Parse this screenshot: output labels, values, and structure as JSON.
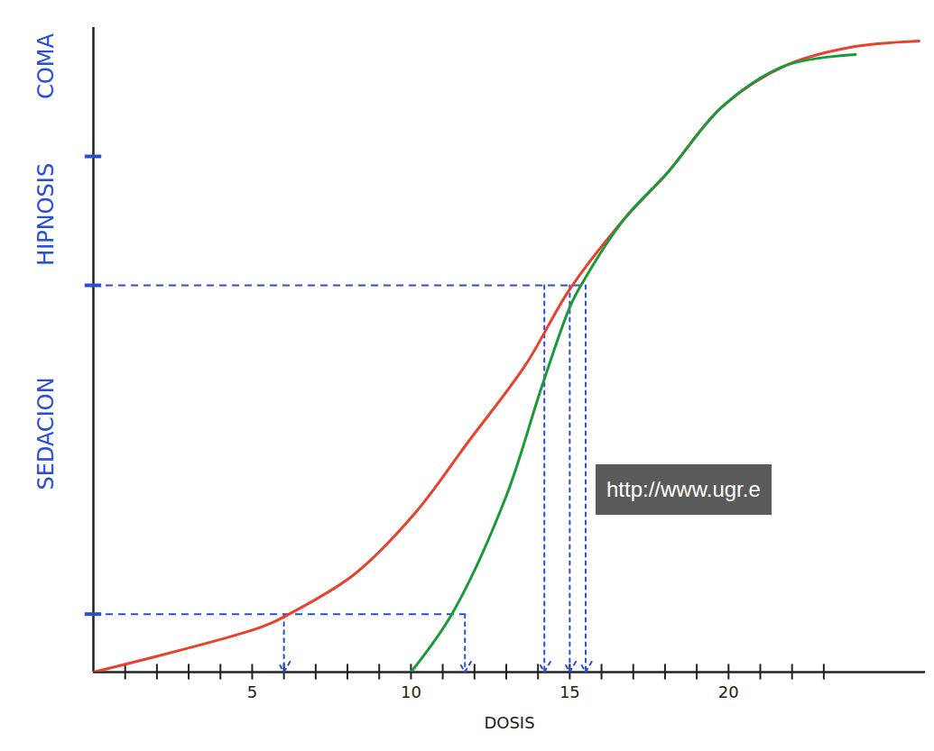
{
  "chart_data": {
    "type": "line",
    "x_label": "DOSIS",
    "xlim": [
      0,
      26.2
    ],
    "ylim": [
      0,
      100
    ],
    "xticks": [
      5,
      10,
      15,
      20
    ],
    "x_minor_ticks": [
      1,
      2,
      3,
      4,
      5,
      6,
      7,
      8,
      9,
      10,
      11,
      12,
      13,
      14,
      15,
      16,
      17,
      18,
      19,
      20,
      21,
      22,
      23
    ],
    "yticks": [
      9,
      60,
      80
    ],
    "tick_labels": "x",
    "grid": false,
    "y_regions": [
      {
        "label": "SEDACION",
        "y": 37
      },
      {
        "label": "HIPNOSIS",
        "y": 71
      },
      {
        "label": "COMA",
        "y": 94
      }
    ],
    "series": [
      {
        "color": "#e8412c",
        "x": [
          0,
          5.3,
          6.2,
          8.2,
          10.1,
          11.8,
          13.6,
          15.0,
          16.7,
          18.1,
          19.8,
          21.8,
          23.8,
          26.0
        ],
        "values": [
          0,
          7,
          9.1,
          15.1,
          24.5,
          35.7,
          47.6,
          59.4,
          70.2,
          77.6,
          87.7,
          94.1,
          96.9,
          97.9
        ]
      },
      {
        "color": "#1a9a3a",
        "x": [
          10,
          11.3,
          13.0,
          14.1,
          15.0,
          15.4,
          16.7,
          18.1,
          19.8,
          21.8,
          24.0
        ],
        "values": [
          0,
          9.1,
          27.3,
          44,
          56.6,
          60.4,
          70.2,
          77.6,
          87.7,
          94.1,
          95.8
        ]
      }
    ],
    "guides": [
      {
        "y": 9,
        "x_end": 11.7,
        "doses": [
          6,
          11.7
        ]
      },
      {
        "y": 60,
        "x_end": 15.5,
        "doses": [
          14.2,
          15.0,
          15.5
        ]
      }
    ],
    "guide_color": "#2a4fd0",
    "annotations": [
      "http://www.ugr.e"
    ]
  }
}
